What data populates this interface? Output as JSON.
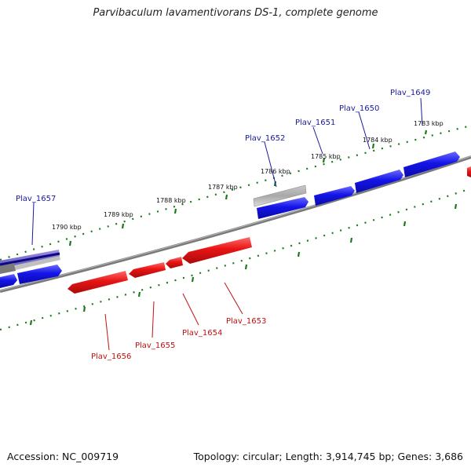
{
  "title": "Parvibaculum lavamentivorans DS-1, complete genome",
  "footer": {
    "accession": "Accession: NC_009719",
    "summary": "Topology: circular; Length: 3,914,745 bp; Genes: 3,686"
  },
  "colors": {
    "forward_gene": "#1010e0",
    "reverse_gene": "#e01010",
    "other_feature": "#9a9a9a",
    "backbone": "#7a7a7a",
    "tick": "#1a7a1a",
    "forward_label": "#1a1aa0",
    "reverse_label": "#c01010"
  },
  "kbp_labels": [
    "1783 kbp",
    "1784 kbp",
    "1785 kbp",
    "1786 kbp",
    "1787 kbp",
    "1788 kbp",
    "1789 kbp",
    "1790 kbp"
  ],
  "forward_genes": [
    "Plav_1649",
    "Plav_1650",
    "Plav_1651",
    "Plav_1652",
    "Plav_1657"
  ],
  "reverse_genes": [
    "Plav_1653",
    "Plav_1654",
    "Plav_1655",
    "Plav_1656"
  ]
}
